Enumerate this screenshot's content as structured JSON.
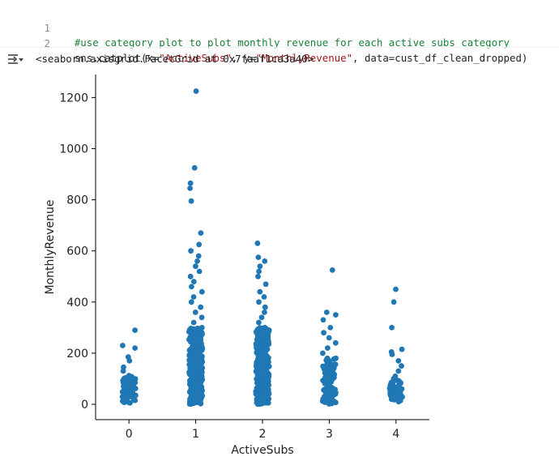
{
  "code_cell": {
    "lines": [
      {
        "number": "1",
        "comment": "#use category plot to plot monthly revenue for each active subs category"
      },
      {
        "number": "2",
        "fn": "sns.catplot(",
        "arg1": "x=",
        "s1": "\"ActiveSubs\"",
        "arg2": ", y=",
        "s2": "\"MonthlyRevenue\"",
        "arg3": ", data=cust_df_clean_dropped)"
      }
    ]
  },
  "output": {
    "icon": "output-toggle-icon",
    "text": "<seaborn.axisgrid.FacetGrid at 0x7faaf1ca3a40>"
  },
  "chart_data": {
    "type": "scatter",
    "xlabel": "ActiveSubs",
    "ylabel": "MonthlyRevenue",
    "categories": [
      "0",
      "1",
      "2",
      "3",
      "4"
    ],
    "ylim": [
      -60,
      1290
    ],
    "yticks": [
      0,
      200,
      400,
      600,
      800,
      1000,
      1200
    ],
    "grid": false,
    "color": "#1f77b4",
    "series": [
      {
        "category": "0",
        "dense_range": [
          5,
          110
        ],
        "points": [
          8,
          12,
          22,
          30,
          38,
          45,
          52,
          60,
          65,
          72,
          78,
          85,
          92,
          100,
          108,
          112,
          130,
          145,
          170,
          185,
          220,
          230,
          290
        ]
      },
      {
        "category": "1",
        "dense_range": [
          0,
          300
        ],
        "points": [
          300,
          320,
          340,
          360,
          380,
          400,
          420,
          440,
          460,
          480,
          500,
          520,
          540,
          560,
          580,
          600,
          625,
          670,
          795,
          845,
          865,
          925,
          1225
        ]
      },
      {
        "category": "2",
        "dense_range": [
          0,
          300
        ],
        "points": [
          300,
          320,
          340,
          360,
          380,
          400,
          420,
          440,
          470,
          500,
          520,
          540,
          560,
          575,
          630
        ]
      },
      {
        "category": "3",
        "dense_range": [
          0,
          180
        ],
        "points": [
          180,
          200,
          220,
          240,
          260,
          280,
          300,
          330,
          350,
          360,
          525
        ]
      },
      {
        "category": "4",
        "dense_range": [
          10,
          100
        ],
        "points": [
          100,
          110,
          130,
          150,
          170,
          195,
          205,
          215,
          300,
          400,
          450
        ]
      }
    ]
  }
}
